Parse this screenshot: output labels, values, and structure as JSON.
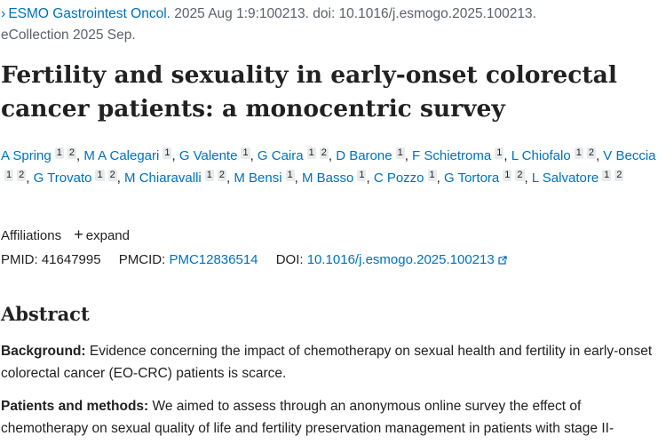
{
  "citation": {
    "journal": "ESMO Gastrointest Oncol.",
    "text": " 2025 Aug 1:9:100213. doi: 10.1016/j.esmogo.2025.100213.",
    "collection": "eCollection 2025 Sep."
  },
  "title": "Fertility and sexuality in early-onset colorectal cancer patients: a monocentric survey",
  "authors": [
    {
      "name": "A Spring",
      "aff": [
        "1",
        "2"
      ]
    },
    {
      "name": "M A Calegari",
      "aff": [
        "1"
      ]
    },
    {
      "name": "G Valente",
      "aff": [
        "1"
      ]
    },
    {
      "name": "G Caira",
      "aff": [
        "1",
        "2"
      ]
    },
    {
      "name": "D Barone",
      "aff": [
        "1"
      ]
    },
    {
      "name": "F Schietroma",
      "aff": [
        "1"
      ]
    },
    {
      "name": "L Chiofalo",
      "aff": [
        "1",
        "2"
      ]
    },
    {
      "name": "V Beccia",
      "aff": [
        "1",
        "2"
      ]
    },
    {
      "name": "G Trovato",
      "aff": [
        "1",
        "2"
      ]
    },
    {
      "name": "M Chiaravalli",
      "aff": [
        "1",
        "2"
      ]
    },
    {
      "name": "M Bensi",
      "aff": [
        "1"
      ]
    },
    {
      "name": "M Basso",
      "aff": [
        "1"
      ]
    },
    {
      "name": "C Pozzo",
      "aff": [
        "1"
      ]
    },
    {
      "name": "G Tortora",
      "aff": [
        "1",
        "2"
      ]
    },
    {
      "name": "L Salvatore",
      "aff": [
        "1",
        "2"
      ]
    }
  ],
  "affiliations": {
    "label": "Affiliations",
    "expand_label": "expand"
  },
  "ids": {
    "pmid_label": "PMID:",
    "pmid": "41647995",
    "pmcid_label": "PMCID:",
    "pmcid": "PMC12836514",
    "doi_label": "DOI:",
    "doi": "10.1016/j.esmogo.2025.100213"
  },
  "abstract": {
    "heading": "Abstract",
    "background_label": "Background:",
    "background_text": " Evidence concerning the impact of chemotherapy on sexual health and fertility in early-onset colorectal cancer (EO-CRC) patients is scarce.",
    "methods_label": "Patients and methods:",
    "methods_text": " We aimed to assess through an anonymous online survey the effect of chemotherapy on sexual quality of life and fertility preservation management in patients with stage II-"
  },
  "colors": {
    "link": "#0071bc",
    "text": "#212121",
    "muted": "#5b616b",
    "badge": "#e8eaec"
  }
}
